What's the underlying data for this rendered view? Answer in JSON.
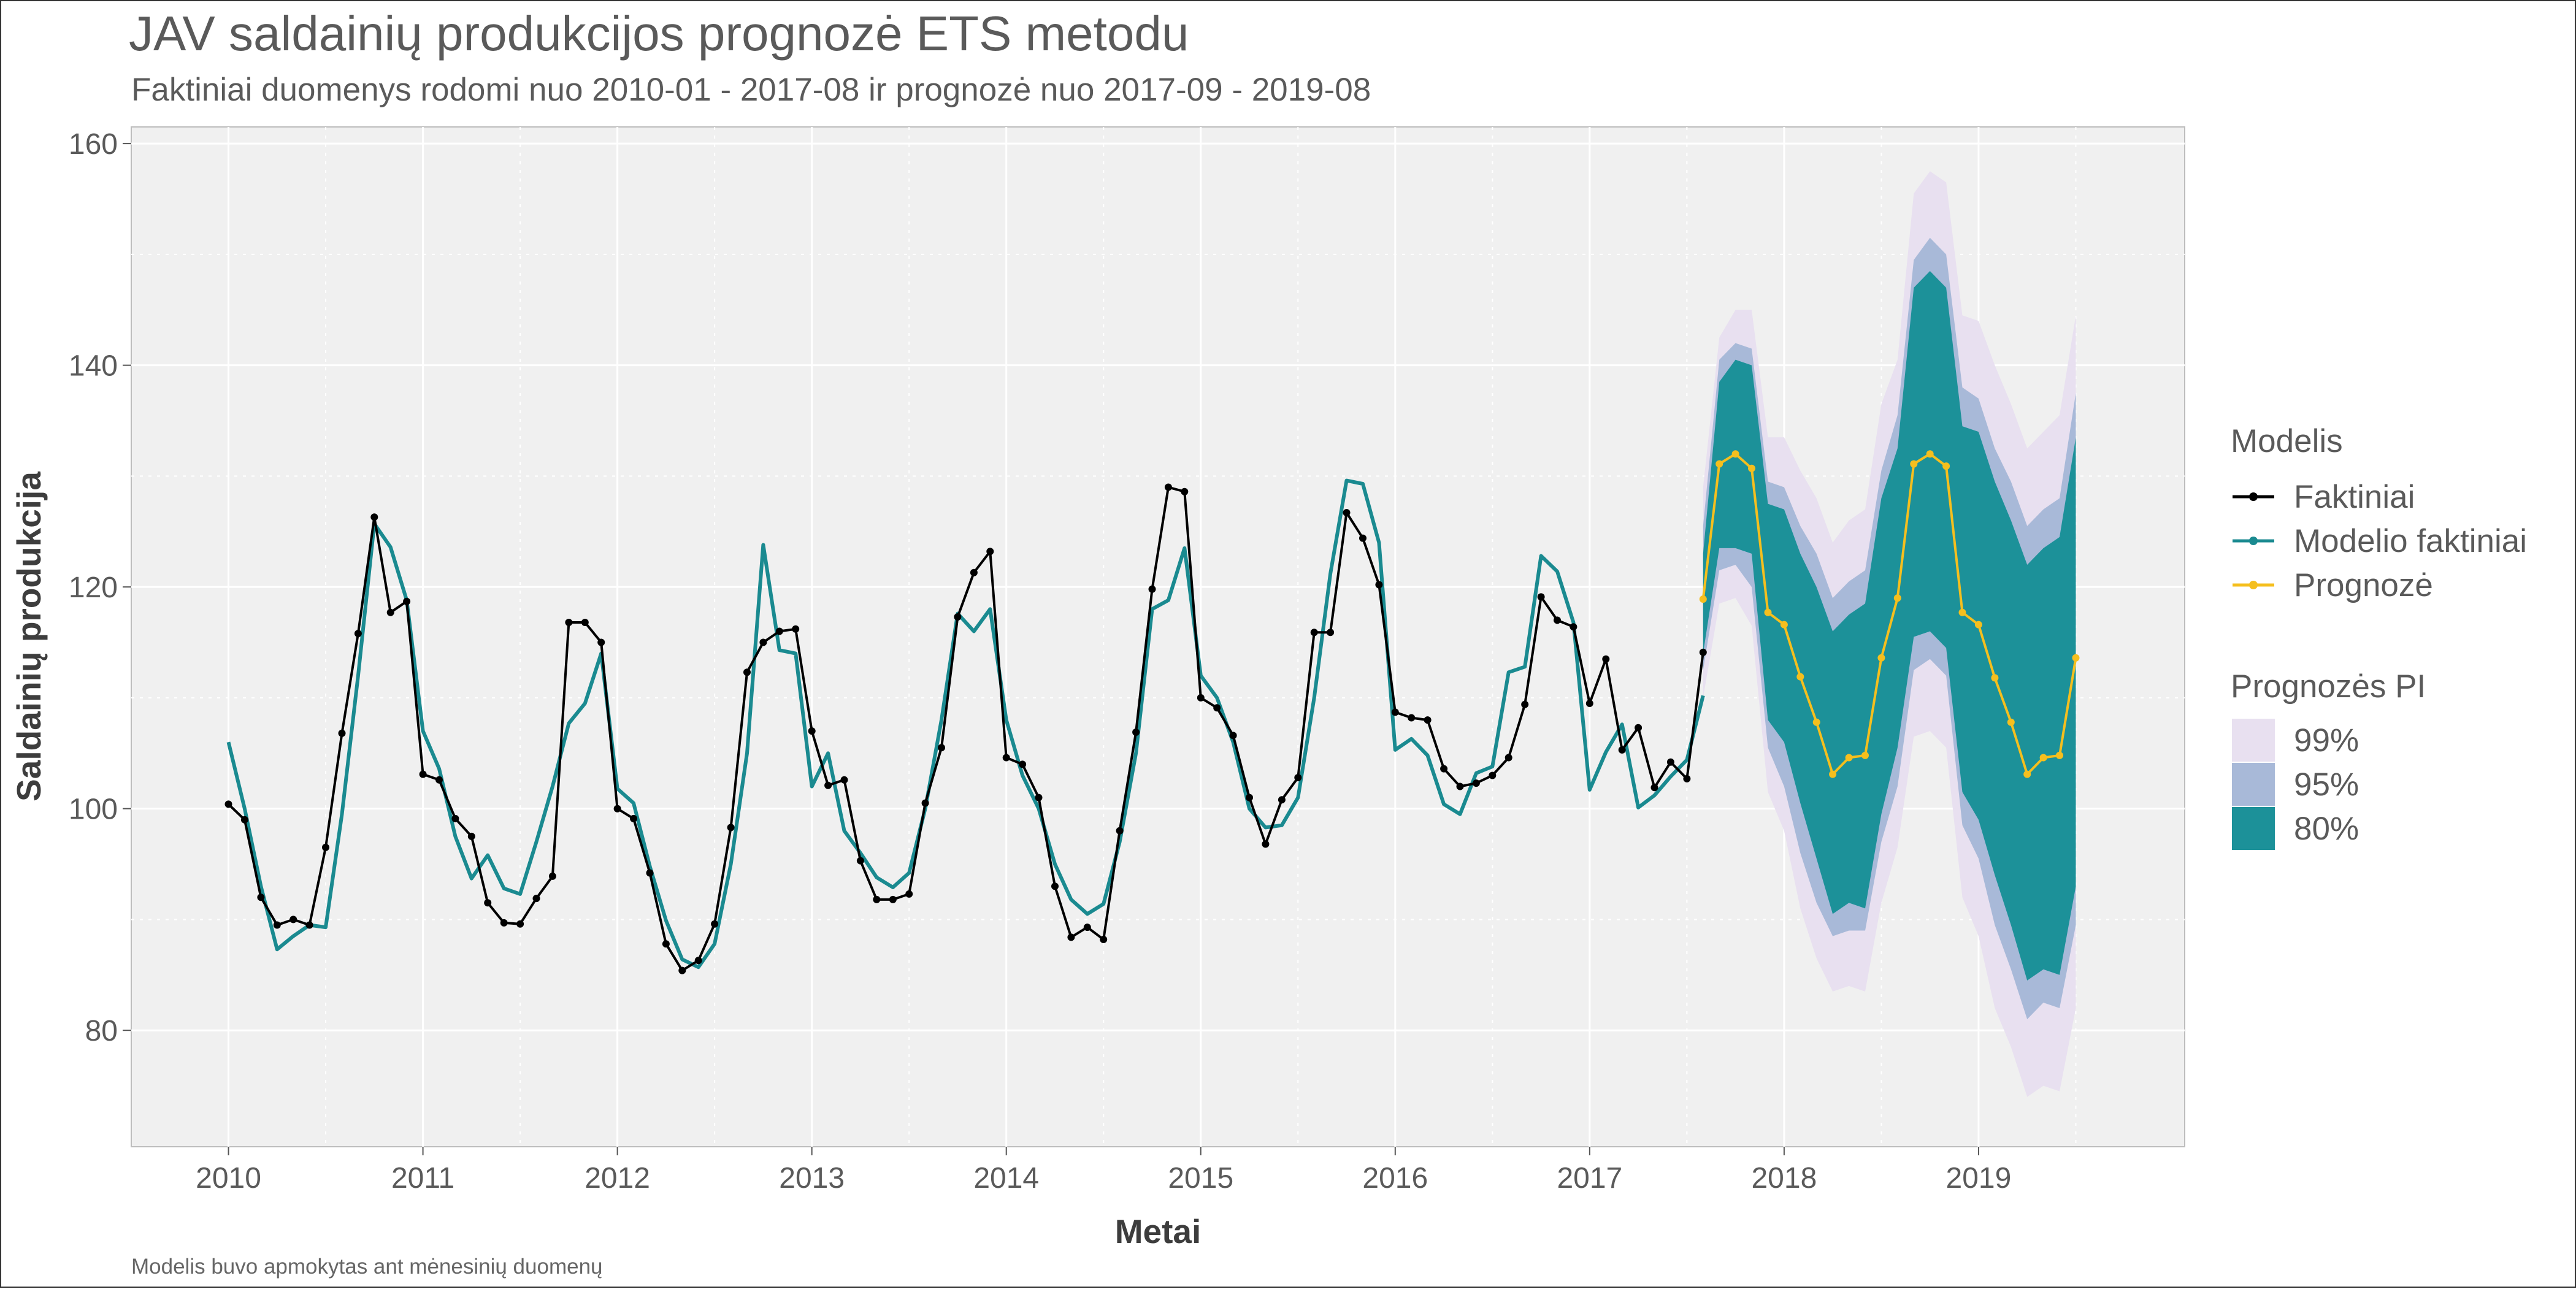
{
  "chart_data": {
    "type": "line",
    "title": "JAV saldainių produkcijos prognozė ETS metodu",
    "subtitle": "Faktiniai duomenys rodomi nuo 2010-01 - 2017-08 ir prognozė nuo 2017-09 - 2019-08",
    "caption": "Modelis buvo apmokytas ant mėnesinių duomenų",
    "xlabel": "Metai",
    "ylabel": "Saldainių produkcija",
    "xlim": [
      2009.5,
      2020.06
    ],
    "ylim": [
      69.5,
      161.5
    ],
    "x_ticks": [
      "2010",
      "2011",
      "2012",
      "2013",
      "2014",
      "2015",
      "2016",
      "2017",
      "2018",
      "2019"
    ],
    "y_ticks": [
      "80",
      "100",
      "120",
      "140",
      "160"
    ],
    "grid": true,
    "legend_position": "right",
    "x_start": "2010-01",
    "series": [
      {
        "name": "Faktiniai",
        "color": "#000000",
        "markers": true,
        "values": [
          100.4,
          99.0,
          92.0,
          89.5,
          90.0,
          89.5,
          96.5,
          106.8,
          115.8,
          126.3,
          117.7,
          118.7,
          103.1,
          102.6,
          99.1,
          97.5,
          91.5,
          89.7,
          89.6,
          91.9,
          93.9,
          116.8,
          116.8,
          115.0,
          100.0,
          99.1,
          94.2,
          87.8,
          85.4,
          86.3,
          89.6,
          98.3,
          112.3,
          115.0,
          116.0,
          116.2,
          107.0,
          102.1,
          102.6,
          95.3,
          91.8,
          91.8,
          92.3,
          100.5,
          105.5,
          117.3,
          121.3,
          123.2,
          104.6,
          104.0,
          101.0,
          93.0,
          88.4,
          89.3,
          88.2,
          98.0,
          106.9,
          119.8,
          129.0,
          128.6,
          110.0,
          109.1,
          106.6,
          101.0,
          96.8,
          100.8,
          102.8,
          115.9,
          115.9,
          126.7,
          124.4,
          120.2,
          108.7,
          108.2,
          108.0,
          103.6,
          102.0,
          102.3,
          103.0,
          104.6,
          109.4,
          119.1,
          117.0,
          116.4,
          109.5,
          113.5,
          105.3,
          107.3,
          101.9,
          104.2,
          102.7,
          114.1
        ]
      },
      {
        "name": "Modelio faktiniai",
        "color": "#1a8a90",
        "markers": false,
        "values": [
          106.0,
          100.0,
          93.0,
          87.3,
          88.5,
          89.5,
          89.3,
          99.5,
          112.0,
          125.7,
          123.6,
          118.8,
          107.0,
          103.6,
          97.5,
          93.7,
          95.8,
          92.8,
          92.3,
          97.0,
          102.0,
          107.7,
          109.5,
          114.0,
          101.8,
          100.5,
          94.8,
          89.9,
          86.4,
          85.7,
          87.8,
          95.0,
          105.0,
          123.8,
          114.3,
          114.0,
          102.0,
          105.0,
          98.0,
          96.0,
          93.8,
          92.9,
          94.2,
          100.0,
          108.0,
          117.6,
          116.0,
          118.0,
          108.0,
          103.0,
          100.0,
          95.0,
          91.8,
          90.5,
          91.4,
          97.0,
          105.0,
          118.0,
          118.8,
          123.5,
          112.0,
          110.0,
          106.0,
          100.0,
          98.3,
          98.5,
          101.0,
          110.0,
          121.2,
          129.6,
          129.3,
          124.0,
          105.3,
          106.3,
          104.8,
          100.4,
          99.5,
          103.2,
          103.8,
          112.3,
          112.8,
          122.8,
          121.4,
          116.8,
          101.7,
          105.1,
          107.6,
          100.1,
          101.2,
          102.9,
          104.4,
          110.2
        ]
      },
      {
        "name": "Prognozė",
        "color": "#f5bf1e",
        "markers": true,
        "x_start": "2017-08",
        "values": [
          118.9,
          131.1,
          132.0,
          130.7,
          117.7,
          116.6,
          111.9,
          107.8,
          103.1,
          104.6,
          104.8,
          113.6,
          119.0,
          131.1,
          132.0,
          130.9,
          117.7,
          116.6,
          111.8,
          107.8,
          103.1,
          104.6,
          104.8,
          113.6
        ]
      }
    ],
    "intervals": {
      "x_start": "2017-08",
      "bands": [
        {
          "name": "99%",
          "color": "#e8e0f0",
          "lower": [
            110.0,
            118.5,
            119.0,
            116.5,
            101.5,
            98.0,
            91.0,
            86.5,
            83.5,
            84.0,
            83.5,
            91.5,
            96.5,
            106.5,
            107.0,
            105.5,
            92.0,
            88.5,
            82.0,
            78.5,
            74.0,
            75.0,
            74.5,
            82.0
          ],
          "upper": [
            129.0,
            142.5,
            145.0,
            145.0,
            133.5,
            133.5,
            130.5,
            128.0,
            124.0,
            126.0,
            127.0,
            136.5,
            140.5,
            155.5,
            157.5,
            156.5,
            144.5,
            144.0,
            140.0,
            136.5,
            132.5,
            134.0,
            135.5,
            144.5
          ]
        },
        {
          "name": "95%",
          "color": "#a8b9d8",
          "lower": [
            112.5,
            121.5,
            122.0,
            120.0,
            105.5,
            102.0,
            96.0,
            91.5,
            88.5,
            89.0,
            89.0,
            97.0,
            102.0,
            112.5,
            113.5,
            112.0,
            98.5,
            95.5,
            89.5,
            85.5,
            81.0,
            82.5,
            82.0,
            89.5
          ],
          "upper": [
            125.5,
            140.5,
            142.0,
            141.5,
            129.5,
            129.0,
            125.5,
            123.0,
            119.0,
            120.5,
            121.5,
            130.5,
            135.5,
            149.5,
            151.5,
            150.0,
            138.0,
            137.0,
            132.5,
            129.5,
            125.5,
            127.0,
            128.0,
            137.5
          ]
        },
        {
          "name": "80%",
          "color": "#1c9199",
          "lower": [
            114.0,
            123.5,
            123.5,
            123.0,
            108.0,
            106.0,
            100.5,
            95.5,
            90.5,
            91.5,
            91.0,
            99.5,
            105.5,
            115.5,
            116.0,
            114.5,
            101.5,
            99.0,
            94.0,
            89.5,
            84.5,
            85.5,
            85.0,
            93.0
          ],
          "upper": [
            123.0,
            138.5,
            140.5,
            140.0,
            127.5,
            127.0,
            123.0,
            120.0,
            116.0,
            117.5,
            118.5,
            128.0,
            132.5,
            147.0,
            148.5,
            147.0,
            134.5,
            134.0,
            129.5,
            126.0,
            122.0,
            123.5,
            124.5,
            133.5
          ]
        }
      ]
    },
    "legend": {
      "model_title": "Modelis",
      "model_items": [
        "Faktiniai",
        "Modelio faktiniai",
        "Prognozė"
      ],
      "pi_title": "Prognozės PI",
      "pi_items": [
        "99%",
        "95%",
        "80%"
      ]
    }
  }
}
